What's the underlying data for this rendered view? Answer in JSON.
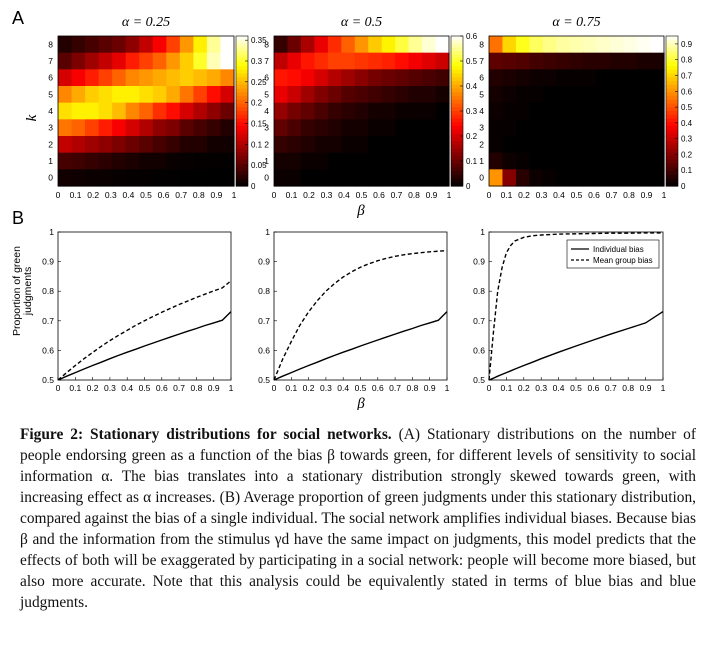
{
  "panel_a_label": "A",
  "panel_b_label": "B",
  "alpha_titles": [
    "α = 0.25",
    "α = 0.5",
    "α = 0.75"
  ],
  "heatmap_ylabel": "k",
  "heatmap_xlabel": "β",
  "lines_ylabel_line1": "Proportion of green",
  "lines_ylabel_line2": "judgments",
  "lines_xlabel": "β",
  "caption": {
    "title": "Figure 2: Stationary distributions for social networks.",
    "body": " (A) Stationary distributions on the number of people endorsing green as a function of the bias β towards green, for different levels of sensitivity to social information α. The bias translates into a stationary distribution strongly skewed towards green, with increasing effect as α increases. (B) Average proportion of green judgments under this stationary distribution, compared against the bias of a single individual. The social network amplifies individual biases. Because bias β and the information from the stimulus γd have the same impact on judgments, this model predicts that the effects of both will be exaggerated by participating in a social network: people will become more biased, but also more accurate. Note that this analysis could be equivalently stated in terms of blue bias and blue judgments."
  },
  "chart_data": [
    {
      "type": "heatmap",
      "title": "α = 0.25",
      "xlabel": "β",
      "ylabel": "k",
      "x_ticks": [
        "0",
        "0.1",
        "0.2",
        "0.3",
        "0.4",
        "0.5",
        "0.6",
        "0.7",
        "0.8",
        "0.9",
        "1"
      ],
      "y_ticks": [
        "0",
        "1",
        "2",
        "3",
        "4",
        "5",
        "6",
        "7",
        "8"
      ],
      "colorbar_ticks": [
        "0",
        "0.05",
        "0.1",
        "0.15",
        "0.2",
        "0.25",
        "0.3",
        "0.35"
      ],
      "colorbar_range": [
        0,
        0.36
      ],
      "rows_k8_to_k0": [
        [
          0.02,
          0.03,
          0.04,
          0.05,
          0.06,
          0.08,
          0.11,
          0.14,
          0.18,
          0.23,
          0.28,
          0.33,
          0.36
        ],
        [
          0.05,
          0.07,
          0.09,
          0.11,
          0.13,
          0.16,
          0.18,
          0.2,
          0.23,
          0.26,
          0.3,
          0.34,
          0.36
        ],
        [
          0.12,
          0.14,
          0.16,
          0.18,
          0.2,
          0.22,
          0.23,
          0.24,
          0.25,
          0.26,
          0.25,
          0.24,
          0.22
        ],
        [
          0.22,
          0.24,
          0.26,
          0.27,
          0.28,
          0.28,
          0.27,
          0.26,
          0.24,
          0.21,
          0.18,
          0.15,
          0.12
        ],
        [
          0.27,
          0.28,
          0.28,
          0.27,
          0.25,
          0.22,
          0.2,
          0.17,
          0.15,
          0.12,
          0.1,
          0.08,
          0.06
        ],
        [
          0.21,
          0.2,
          0.18,
          0.16,
          0.14,
          0.12,
          0.1,
          0.08,
          0.07,
          0.05,
          0.04,
          0.03,
          0.02
        ],
        [
          0.11,
          0.1,
          0.09,
          0.08,
          0.07,
          0.06,
          0.05,
          0.04,
          0.03,
          0.02,
          0.02,
          0.01,
          0.01
        ],
        [
          0.04,
          0.035,
          0.03,
          0.025,
          0.02,
          0.015,
          0.01,
          0.01,
          0.005,
          0.004,
          0.003,
          0.002,
          0.001
        ],
        [
          0.01,
          0.008,
          0.006,
          0.005,
          0.004,
          0.003,
          0.002,
          0.001,
          0.001,
          0.0,
          0.0,
          0.0,
          0.0
        ]
      ]
    },
    {
      "type": "heatmap",
      "title": "α = 0.5",
      "xlabel": "β",
      "ylabel": "k",
      "x_ticks": [
        "0",
        "0.1",
        "0.2",
        "0.3",
        "0.4",
        "0.5",
        "0.6",
        "0.7",
        "0.8",
        "0.9",
        "1"
      ],
      "y_ticks": [
        "0",
        "1",
        "2",
        "3",
        "4",
        "5",
        "6",
        "7",
        "8"
      ],
      "colorbar_ticks": [
        "0",
        "0.1",
        "0.2",
        "0.3",
        "0.4",
        "0.5",
        "0.6"
      ],
      "colorbar_range": [
        0,
        0.6
      ],
      "rows_k8_to_k0": [
        [
          0.05,
          0.1,
          0.16,
          0.22,
          0.28,
          0.33,
          0.38,
          0.43,
          0.47,
          0.51,
          0.55,
          0.58,
          0.6
        ],
        [
          0.18,
          0.22,
          0.26,
          0.28,
          0.3,
          0.3,
          0.29,
          0.28,
          0.27,
          0.25,
          0.23,
          0.21,
          0.19
        ],
        [
          0.26,
          0.25,
          0.23,
          0.2,
          0.17,
          0.15,
          0.13,
          0.11,
          0.1,
          0.09,
          0.08,
          0.07,
          0.06
        ],
        [
          0.22,
          0.19,
          0.15,
          0.12,
          0.1,
          0.08,
          0.07,
          0.06,
          0.05,
          0.04,
          0.03,
          0.03,
          0.02
        ],
        [
          0.14,
          0.11,
          0.09,
          0.07,
          0.05,
          0.04,
          0.03,
          0.02,
          0.02,
          0.01,
          0.01,
          0.01,
          0.0
        ],
        [
          0.09,
          0.07,
          0.05,
          0.04,
          0.03,
          0.02,
          0.02,
          0.01,
          0.01,
          0.0,
          0.0,
          0.0,
          0.0
        ],
        [
          0.05,
          0.04,
          0.03,
          0.02,
          0.02,
          0.01,
          0.01,
          0.0,
          0.0,
          0.0,
          0.0,
          0.0,
          0.0
        ],
        [
          0.02,
          0.02,
          0.01,
          0.01,
          0.0,
          0.0,
          0.0,
          0.0,
          0.0,
          0.0,
          0.0,
          0.0,
          0.0
        ],
        [
          0.01,
          0.01,
          0.0,
          0.0,
          0.0,
          0.0,
          0.0,
          0.0,
          0.0,
          0.0,
          0.0,
          0.0,
          0.0
        ]
      ]
    },
    {
      "type": "heatmap",
      "title": "α = 0.75",
      "xlabel": "β",
      "ylabel": "k",
      "x_ticks": [
        "0",
        "0.1",
        "0.2",
        "0.3",
        "0.4",
        "0.5",
        "0.6",
        "0.7",
        "0.8",
        "0.9",
        "1"
      ],
      "y_ticks": [
        "0",
        "1",
        "2",
        "3",
        "4",
        "5",
        "6",
        "7",
        "8"
      ],
      "colorbar_ticks": [
        "0",
        "0.1",
        "0.2",
        "0.3",
        "0.4",
        "0.5",
        "0.6",
        "0.7",
        "0.8",
        "0.9"
      ],
      "colorbar_range": [
        0,
        0.95
      ],
      "rows_k8_to_k0": [
        [
          0.55,
          0.7,
          0.78,
          0.83,
          0.86,
          0.88,
          0.89,
          0.9,
          0.91,
          0.92,
          0.93,
          0.94,
          0.95
        ],
        [
          0.14,
          0.13,
          0.12,
          0.1,
          0.09,
          0.08,
          0.07,
          0.06,
          0.06,
          0.05,
          0.05,
          0.04,
          0.04
        ],
        [
          0.05,
          0.04,
          0.03,
          0.02,
          0.02,
          0.01,
          0.01,
          0.01,
          0.0,
          0.0,
          0.0,
          0.0,
          0.0
        ],
        [
          0.03,
          0.02,
          0.01,
          0.01,
          0.0,
          0.0,
          0.0,
          0.0,
          0.0,
          0.0,
          0.0,
          0.0,
          0.0
        ],
        [
          0.02,
          0.01,
          0.01,
          0.0,
          0.0,
          0.0,
          0.0,
          0.0,
          0.0,
          0.0,
          0.0,
          0.0,
          0.0
        ],
        [
          0.01,
          0.01,
          0.0,
          0.0,
          0.0,
          0.0,
          0.0,
          0.0,
          0.0,
          0.0,
          0.0,
          0.0,
          0.0
        ],
        [
          0.01,
          0.0,
          0.0,
          0.0,
          0.0,
          0.0,
          0.0,
          0.0,
          0.0,
          0.0,
          0.0,
          0.0,
          0.0
        ],
        [
          0.05,
          0.02,
          0.01,
          0.0,
          0.0,
          0.0,
          0.0,
          0.0,
          0.0,
          0.0,
          0.0,
          0.0,
          0.0
        ],
        [
          0.6,
          0.2,
          0.06,
          0.02,
          0.01,
          0.0,
          0.0,
          0.0,
          0.0,
          0.0,
          0.0,
          0.0,
          0.0
        ]
      ]
    },
    {
      "type": "line",
      "xlabel": "β",
      "ylabel": "Proportion of green judgments",
      "x_ticks": [
        "0",
        "0.1",
        "0.2",
        "0.3",
        "0.4",
        "0.5",
        "0.6",
        "0.7",
        "0.8",
        "0.9",
        "1"
      ],
      "y_ticks": [
        "0.5",
        "0.6",
        "0.7",
        "0.8",
        "0.9",
        "1"
      ],
      "xlim": [
        0,
        1
      ],
      "ylim": [
        0.5,
        1
      ],
      "x": [
        0,
        0.05,
        0.1,
        0.15,
        0.2,
        0.25,
        0.3,
        0.35,
        0.4,
        0.45,
        0.5,
        0.55,
        0.6,
        0.65,
        0.7,
        0.75,
        0.8,
        0.85,
        0.9,
        0.95,
        1
      ],
      "series": [
        {
          "values": [
            0.5,
            0.513,
            0.525,
            0.537,
            0.549,
            0.56,
            0.572,
            0.583,
            0.594,
            0.604,
            0.615,
            0.625,
            0.635,
            0.645,
            0.655,
            0.665,
            0.674,
            0.684,
            0.693,
            0.702,
            0.731
          ],
          "style": "solid"
        },
        {
          "values": [
            0.5,
            0.525,
            0.549,
            0.572,
            0.593,
            0.614,
            0.633,
            0.651,
            0.668,
            0.685,
            0.7,
            0.715,
            0.729,
            0.742,
            0.755,
            0.767,
            0.779,
            0.79,
            0.801,
            0.811,
            0.835
          ],
          "style": "dashed"
        }
      ]
    },
    {
      "type": "line",
      "xlabel": "β",
      "ylabel": "",
      "x_ticks": [
        "0",
        "0.1",
        "0.2",
        "0.3",
        "0.4",
        "0.5",
        "0.6",
        "0.7",
        "0.8",
        "0.9",
        "1"
      ],
      "y_ticks": [
        "0.5",
        "0.6",
        "0.7",
        "0.8",
        "0.9",
        "1"
      ],
      "xlim": [
        0,
        1
      ],
      "ylim": [
        0.5,
        1
      ],
      "x": [
        0,
        0.05,
        0.1,
        0.15,
        0.2,
        0.25,
        0.3,
        0.35,
        0.4,
        0.45,
        0.5,
        0.55,
        0.6,
        0.65,
        0.7,
        0.75,
        0.8,
        0.85,
        0.9,
        0.95,
        1
      ],
      "series": [
        {
          "values": [
            0.5,
            0.513,
            0.525,
            0.537,
            0.549,
            0.56,
            0.572,
            0.583,
            0.594,
            0.604,
            0.615,
            0.625,
            0.635,
            0.645,
            0.655,
            0.665,
            0.674,
            0.684,
            0.693,
            0.702,
            0.731
          ],
          "style": "solid"
        },
        {
          "values": [
            0.5,
            0.57,
            0.63,
            0.685,
            0.73,
            0.768,
            0.8,
            0.826,
            0.848,
            0.866,
            0.881,
            0.893,
            0.903,
            0.911,
            0.918,
            0.923,
            0.927,
            0.93,
            0.933,
            0.935,
            0.937
          ],
          "style": "dashed"
        }
      ]
    },
    {
      "type": "line",
      "xlabel": "β",
      "ylabel": "",
      "x_ticks": [
        "0",
        "0.1",
        "0.2",
        "0.3",
        "0.4",
        "0.5",
        "0.6",
        "0.7",
        "0.8",
        "0.9",
        "1"
      ],
      "y_ticks": [
        "0.5",
        "0.6",
        "0.7",
        "0.8",
        "0.9",
        "1"
      ],
      "xlim": [
        0,
        1
      ],
      "ylim": [
        0.5,
        1
      ],
      "legend": [
        "Individual bias",
        "Mean group bias"
      ],
      "legend_position": "top-right",
      "x": [
        0,
        0.025,
        0.05,
        0.075,
        0.1,
        0.125,
        0.15,
        0.2,
        0.25,
        0.3,
        0.4,
        0.5,
        0.6,
        0.7,
        0.8,
        0.9,
        1
      ],
      "series": [
        {
          "name": "Individual bias",
          "values": [
            0.5,
            0.506,
            0.513,
            0.519,
            0.525,
            0.531,
            0.537,
            0.549,
            0.56,
            0.572,
            0.594,
            0.615,
            0.635,
            0.655,
            0.674,
            0.693,
            0.731
          ],
          "style": "solid"
        },
        {
          "name": "Mean group bias",
          "values": [
            0.5,
            0.66,
            0.8,
            0.88,
            0.93,
            0.955,
            0.97,
            0.982,
            0.987,
            0.99,
            0.993,
            0.994,
            0.995,
            0.996,
            0.996,
            0.997,
            0.997
          ],
          "style": "dashed"
        }
      ]
    }
  ]
}
